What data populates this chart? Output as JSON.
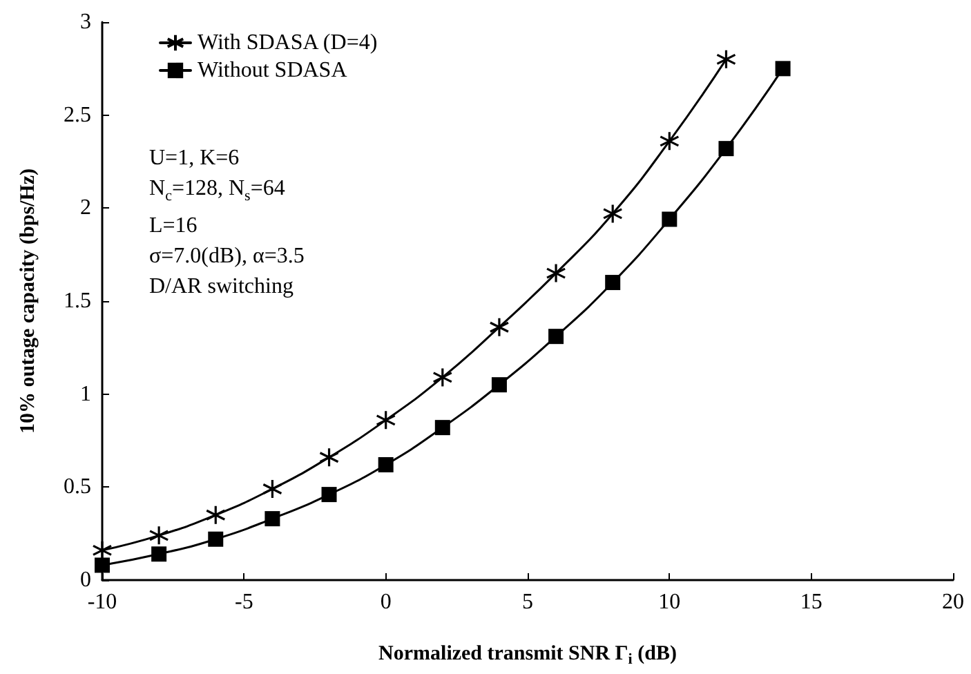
{
  "chart_data": {
    "type": "line",
    "xlabel": "Normalized transmit SNR Γ$_{i}$ (dB)",
    "ylabel": "10% outage capacity (bps/Hz)",
    "xlim": [
      -10,
      20
    ],
    "xticks": [
      -10,
      -5,
      0,
      5,
      10,
      15,
      20
    ],
    "ylim": [
      0,
      3
    ],
    "yticks": [
      0,
      0.5,
      1,
      1.5,
      2,
      2.5,
      3
    ],
    "grid": false,
    "legend": "top left",
    "line_style": "solid",
    "annotations": [
      "U=1, K=6",
      "N$_{c}$=128, N$_{s}$=64",
      "L=16",
      "σ=7.0(dB), α=3.5",
      "D/AR switching"
    ],
    "series": [
      {
        "name": "With SDASA (D=4)",
        "color": "#000000",
        "marker": "cross",
        "x": [
          -10,
          -8,
          -6,
          -4,
          -2,
          0,
          2,
          4,
          6,
          8,
          10,
          12
        ],
        "values": [
          0.16,
          0.24,
          0.35,
          0.49,
          0.66,
          0.86,
          1.09,
          1.36,
          1.65,
          1.97,
          2.36,
          2.8
        ]
      },
      {
        "name": "Without SDASA",
        "color": "#000000",
        "marker": "square",
        "x": [
          -10,
          -8,
          -6,
          -4,
          -2,
          0,
          2,
          4,
          6,
          8,
          10,
          12,
          14
        ],
        "values": [
          0.08,
          0.14,
          0.22,
          0.33,
          0.46,
          0.62,
          0.82,
          1.05,
          1.31,
          1.6,
          1.94,
          2.32,
          2.75
        ]
      }
    ]
  }
}
